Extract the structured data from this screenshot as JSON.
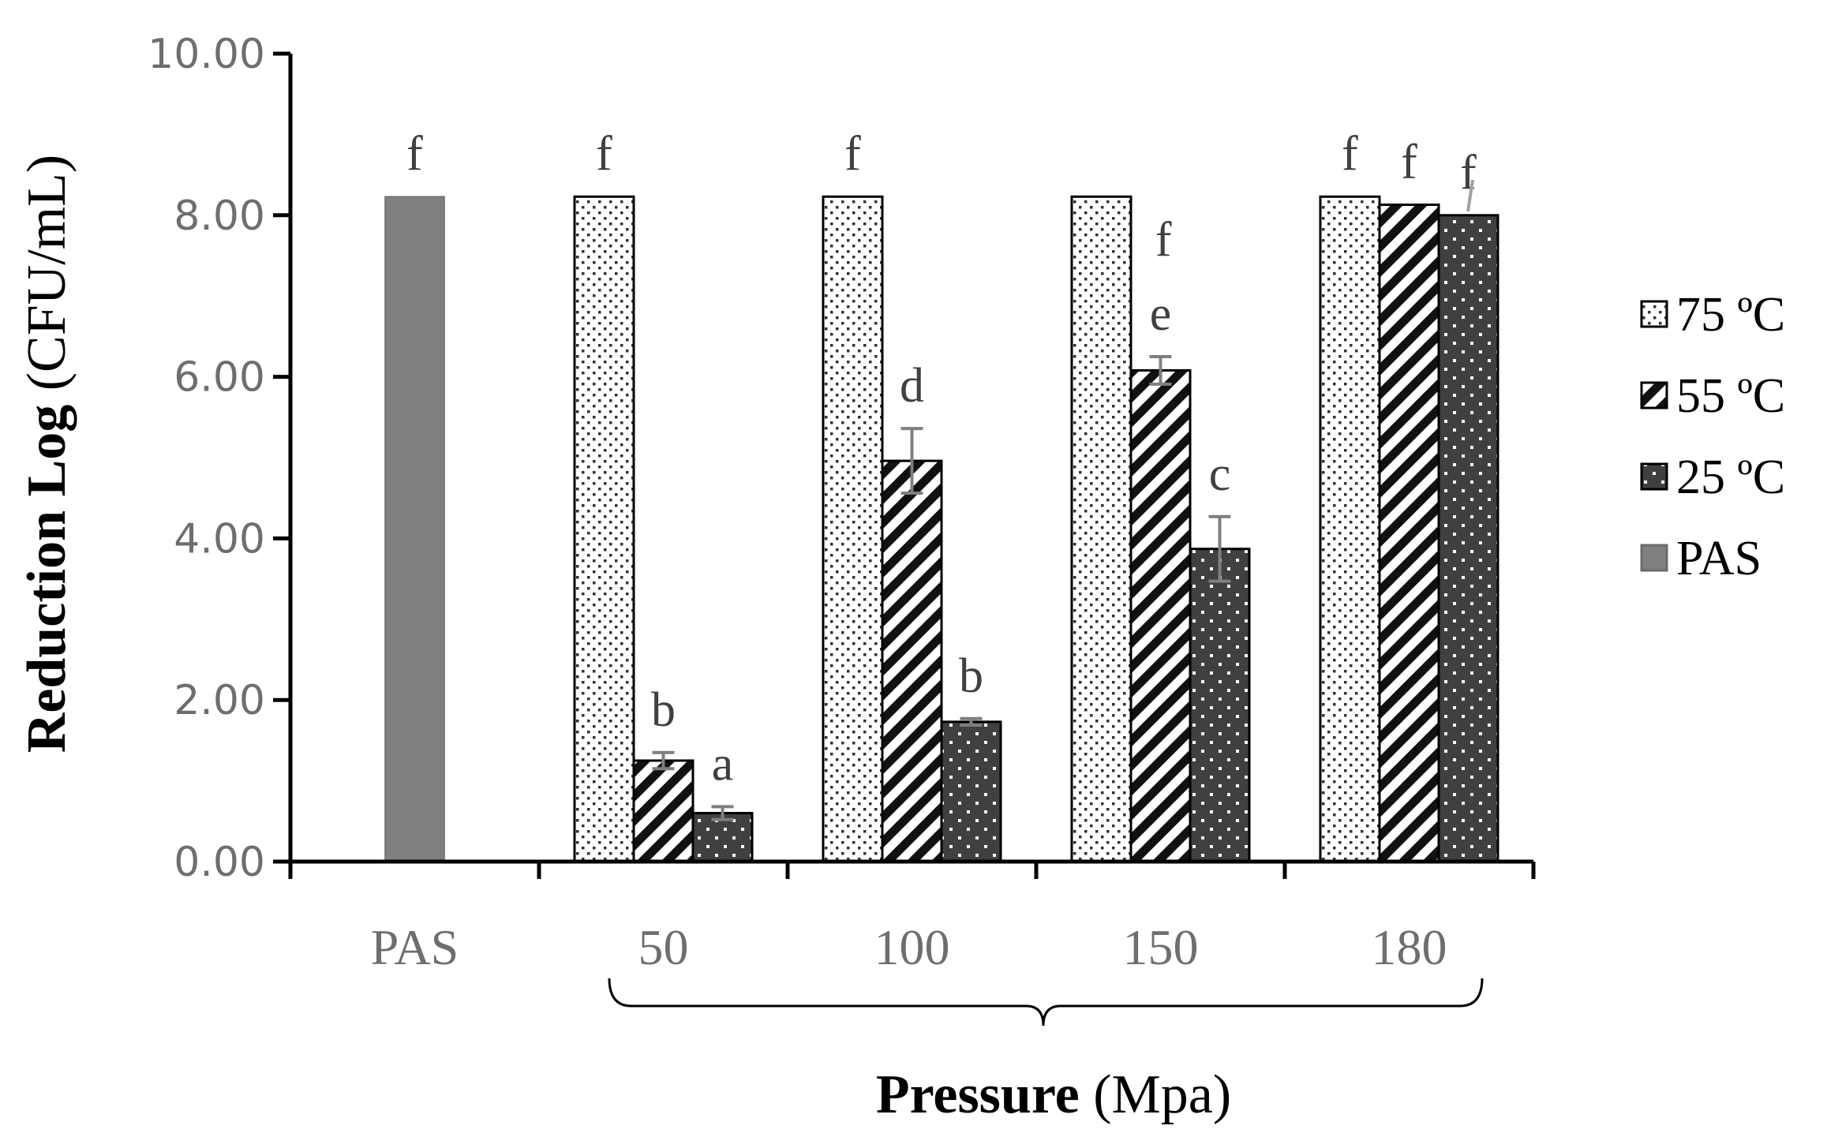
{
  "chart_data": {
    "type": "bar",
    "title": "",
    "xlabel": {
      "bold": "Pressure",
      "unit": "(Mpa)"
    },
    "ylabel": {
      "bold": "Reduction Log",
      "unit": "(CFU/mL)"
    },
    "ylim": [
      0,
      10
    ],
    "yticks": [
      "0.00",
      "2.00",
      "4.00",
      "6.00",
      "8.00",
      "10.00"
    ],
    "categories": [
      "PAS",
      "50",
      "100",
      "150",
      "180"
    ],
    "series": [
      {
        "name": "75 ºC",
        "pattern": "dots",
        "color": "#ffffff",
        "values": [
          null,
          8.23,
          8.23,
          8.23,
          8.23
        ],
        "errors": [
          null,
          0,
          0,
          0,
          0
        ],
        "letters": [
          null,
          "f",
          "f",
          "",
          "f"
        ]
      },
      {
        "name": "55 ºC",
        "pattern": "stripes",
        "color": "#ffffff",
        "values": [
          null,
          1.25,
          4.96,
          6.08,
          8.13
        ],
        "errors": [
          null,
          0.1,
          0.4,
          0.17,
          0
        ],
        "letters": [
          null,
          "b",
          "d",
          "e",
          "f"
        ]
      },
      {
        "name": "25 ºC",
        "pattern": "darkdots",
        "color": "#404040",
        "values": [
          null,
          0.6,
          1.73,
          3.87,
          8.0
        ],
        "errors": [
          null,
          0.08,
          0.04,
          0.4,
          0
        ],
        "letters": [
          null,
          "a",
          "b",
          "c",
          "f"
        ]
      },
      {
        "name": "PAS",
        "pattern": "solid",
        "color": "#808080",
        "values": [
          8.23,
          null,
          null,
          null,
          null
        ],
        "errors": [
          null,
          null,
          null,
          null,
          null
        ],
        "letters": [
          "f",
          null,
          null,
          null,
          null
        ]
      }
    ],
    "extra_letters": [
      {
        "category": "150",
        "label": "f"
      }
    ],
    "legend_position": "right",
    "grid": false
  }
}
